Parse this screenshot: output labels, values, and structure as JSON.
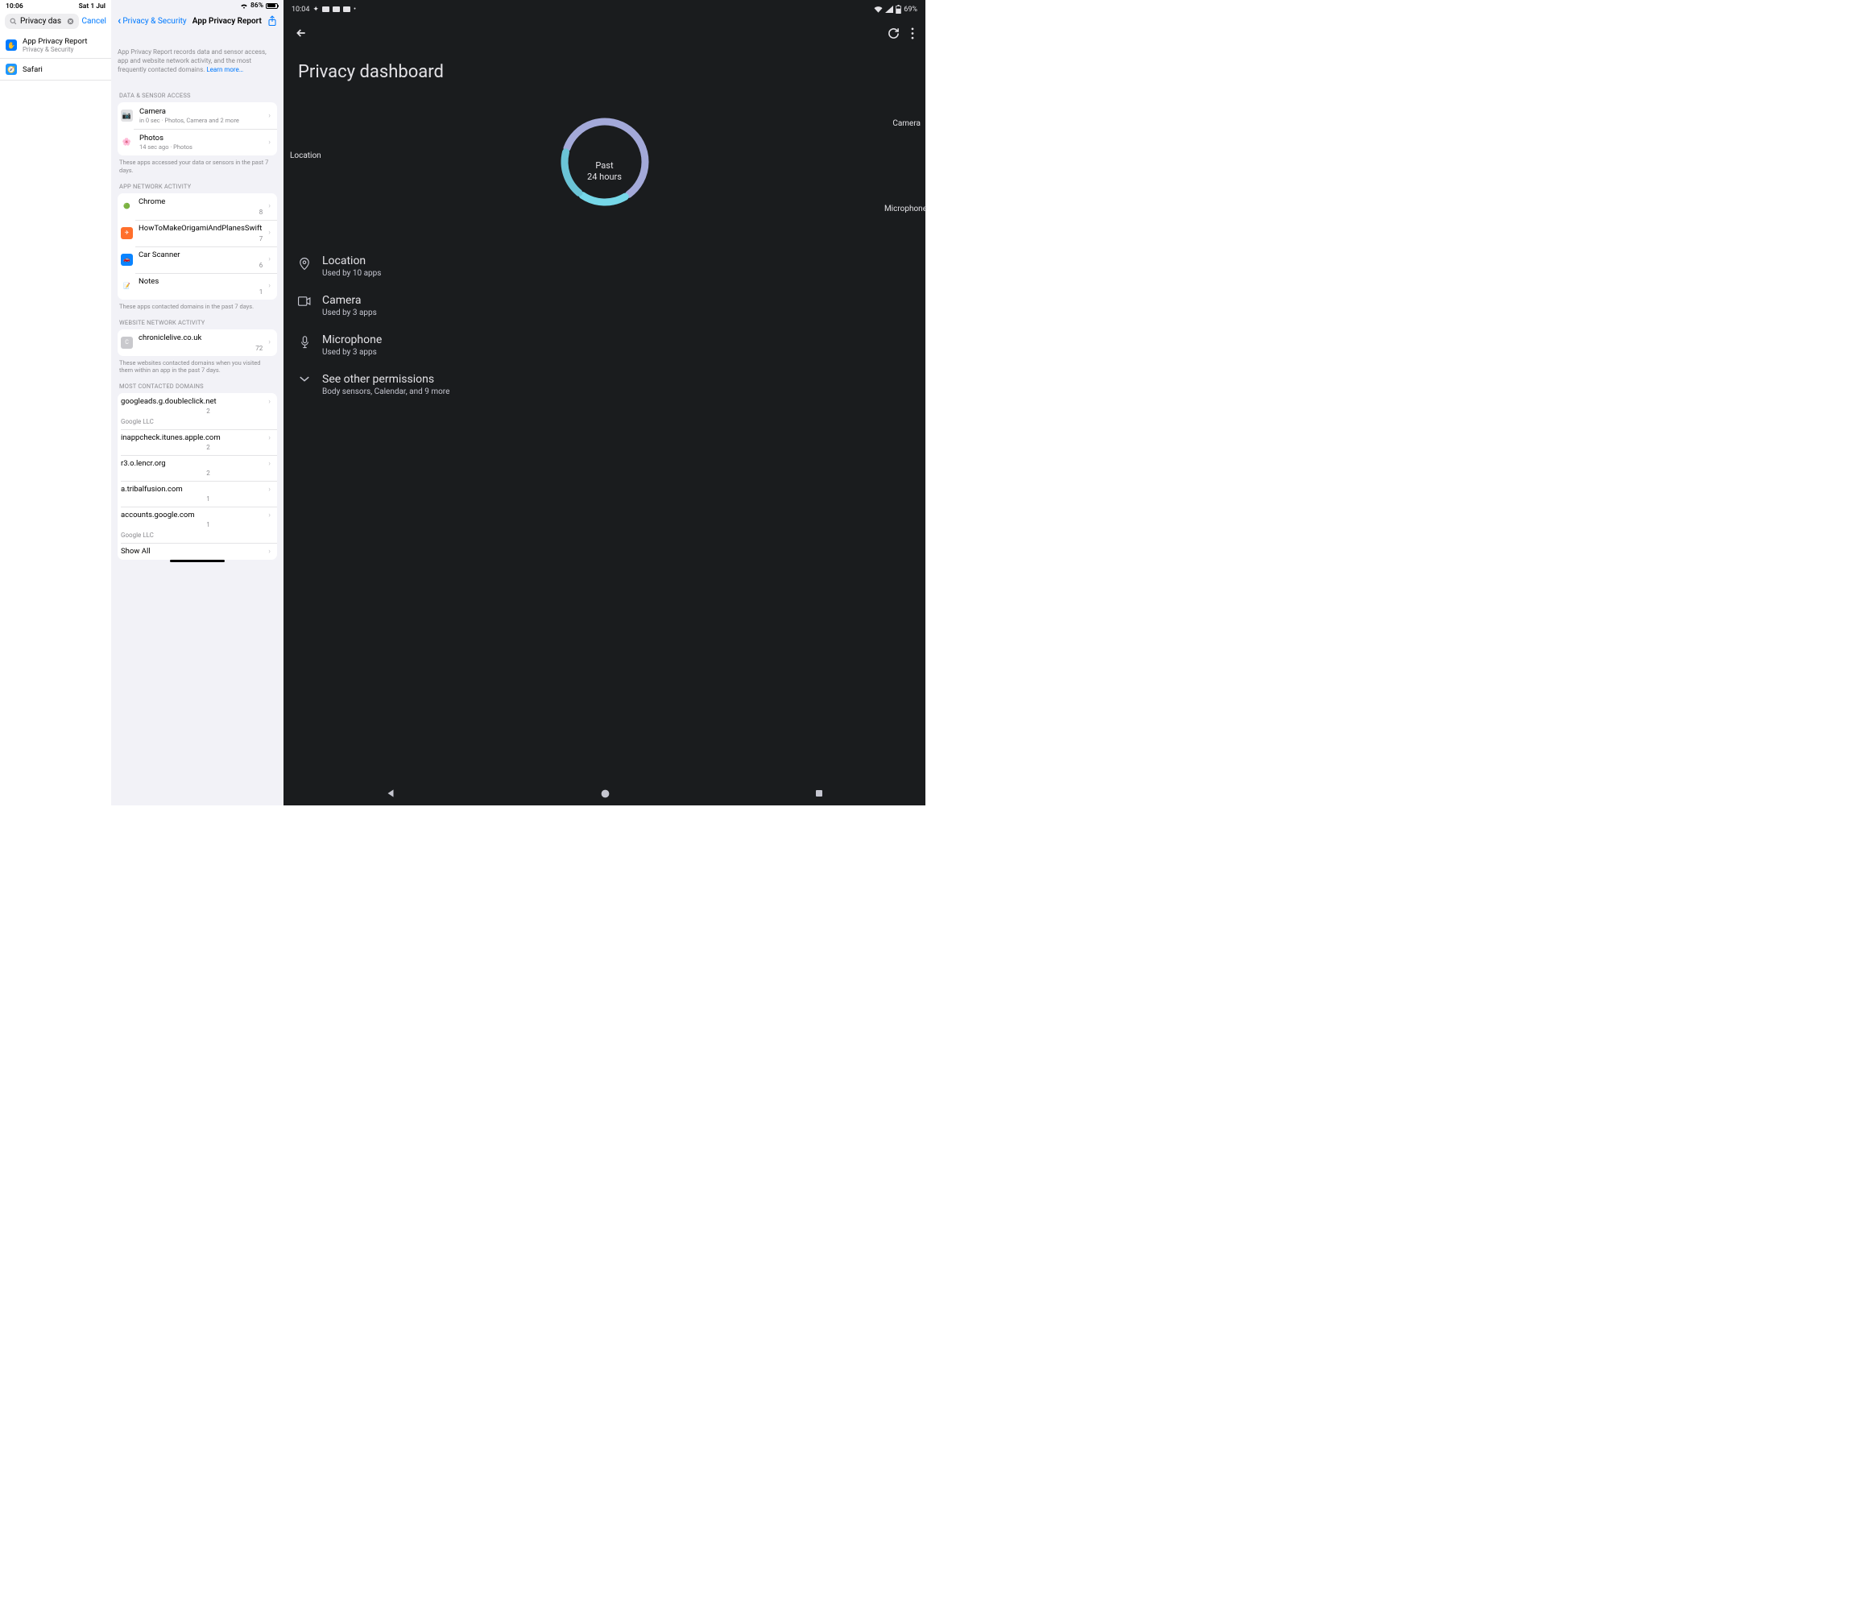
{
  "ios_search": {
    "status": {
      "time": "10:06",
      "date": "Sat 1 Jul"
    },
    "search_value": "Privacy das",
    "cancel": "Cancel",
    "results": [
      {
        "title": "App Privacy Report",
        "sub": "Privacy & Security",
        "icon_bg": "#007aff",
        "icon_glyph": "✋"
      },
      {
        "title": "Safari",
        "sub": "",
        "icon_bg": "#1e96ff",
        "icon_glyph": "🧭"
      }
    ]
  },
  "ios_report": {
    "status": {
      "battery_pct": "86%",
      "battery_fill_pct": 86
    },
    "back_label": "Privacy & Security",
    "title": "App Privacy Report",
    "intro": "App Privacy Report records data and sensor access, app and website network activity, and the most frequently contacted domains. ",
    "learn_more": "Learn more…",
    "sections": {
      "data_sensor": {
        "label": "DATA & SENSOR ACCESS",
        "footer": "These apps accessed your data or sensors in the past 7 days.",
        "items": [
          {
            "title": "Camera",
            "sub": "in 0 sec · Photos, Camera and 2 more",
            "icon_bg": "#e0e0e2",
            "icon_glyph": "📷"
          },
          {
            "title": "Photos",
            "sub": "14 sec ago · Photos",
            "icon_bg": "#ffffff",
            "icon_glyph": "🌸"
          }
        ]
      },
      "app_network": {
        "label": "APP NETWORK ACTIVITY",
        "footer": "These apps contacted domains in the past 7 days.",
        "bar_color": "#f39a00",
        "max": 8,
        "items": [
          {
            "title": "Chrome",
            "count": 8,
            "icon_bg": "#ffffff",
            "icon_glyph": "🟢"
          },
          {
            "title": "HowToMakeOrigamiAndPlanesSwift",
            "count": 7,
            "icon_bg": "#ff6f2c",
            "icon_glyph": "✈"
          },
          {
            "title": "Car Scanner",
            "count": 6,
            "icon_bg": "#0a84ff",
            "icon_glyph": "🚗"
          },
          {
            "title": "Notes",
            "count": 1,
            "icon_bg": "#ffffff",
            "icon_glyph": "📝"
          }
        ]
      },
      "website_network": {
        "label": "WEBSITE NETWORK ACTIVITY",
        "footer": "These websites contacted domains when you visited them within an app in the past 7 days.",
        "bar_color": "#f39a00",
        "max": 72,
        "items": [
          {
            "title": "chroniclelive.co.uk",
            "count": 72,
            "icon_bg": "#c9c9cd",
            "icon_glyph": "C"
          }
        ]
      },
      "domains": {
        "label": "MOST CONTACTED DOMAINS",
        "bar_color": "#0a84ff",
        "max": 2,
        "items": [
          {
            "title": "googleads.g.doubleclick.net",
            "count": 2,
            "owner": "Google LLC"
          },
          {
            "title": "inappcheck.itunes.apple.com",
            "count": 2,
            "owner": ""
          },
          {
            "title": "r3.o.lencr.org",
            "count": 2,
            "owner": ""
          },
          {
            "title": "a.tribalfusion.com",
            "count": 1,
            "owner": ""
          },
          {
            "title": "accounts.google.com",
            "count": 1,
            "owner": "Google LLC"
          }
        ],
        "show_all": "Show All"
      }
    }
  },
  "android": {
    "status": {
      "time": "10:04",
      "battery": "69%"
    },
    "title": "Privacy dashboard",
    "donut": {
      "center_line1": "Past",
      "center_line2": "24 hours",
      "segments": [
        {
          "label": "Location",
          "value": 10,
          "color": "#a3a9d9"
        },
        {
          "label": "Camera",
          "value": 3,
          "color": "#76d7e8"
        },
        {
          "label": "Microphone",
          "value": 3,
          "color": "#6bc4d6"
        }
      ],
      "gap_deg": 6,
      "stroke_width": 9
    },
    "permissions": [
      {
        "title": "Location",
        "sub": "Used by 10 apps",
        "icon": "location"
      },
      {
        "title": "Camera",
        "sub": "Used by 3 apps",
        "icon": "camera"
      },
      {
        "title": "Microphone",
        "sub": "Used by 3 apps",
        "icon": "mic"
      },
      {
        "title": "See other permissions",
        "sub": "Body sensors, Calendar, and 9 more",
        "icon": "expand"
      }
    ]
  }
}
